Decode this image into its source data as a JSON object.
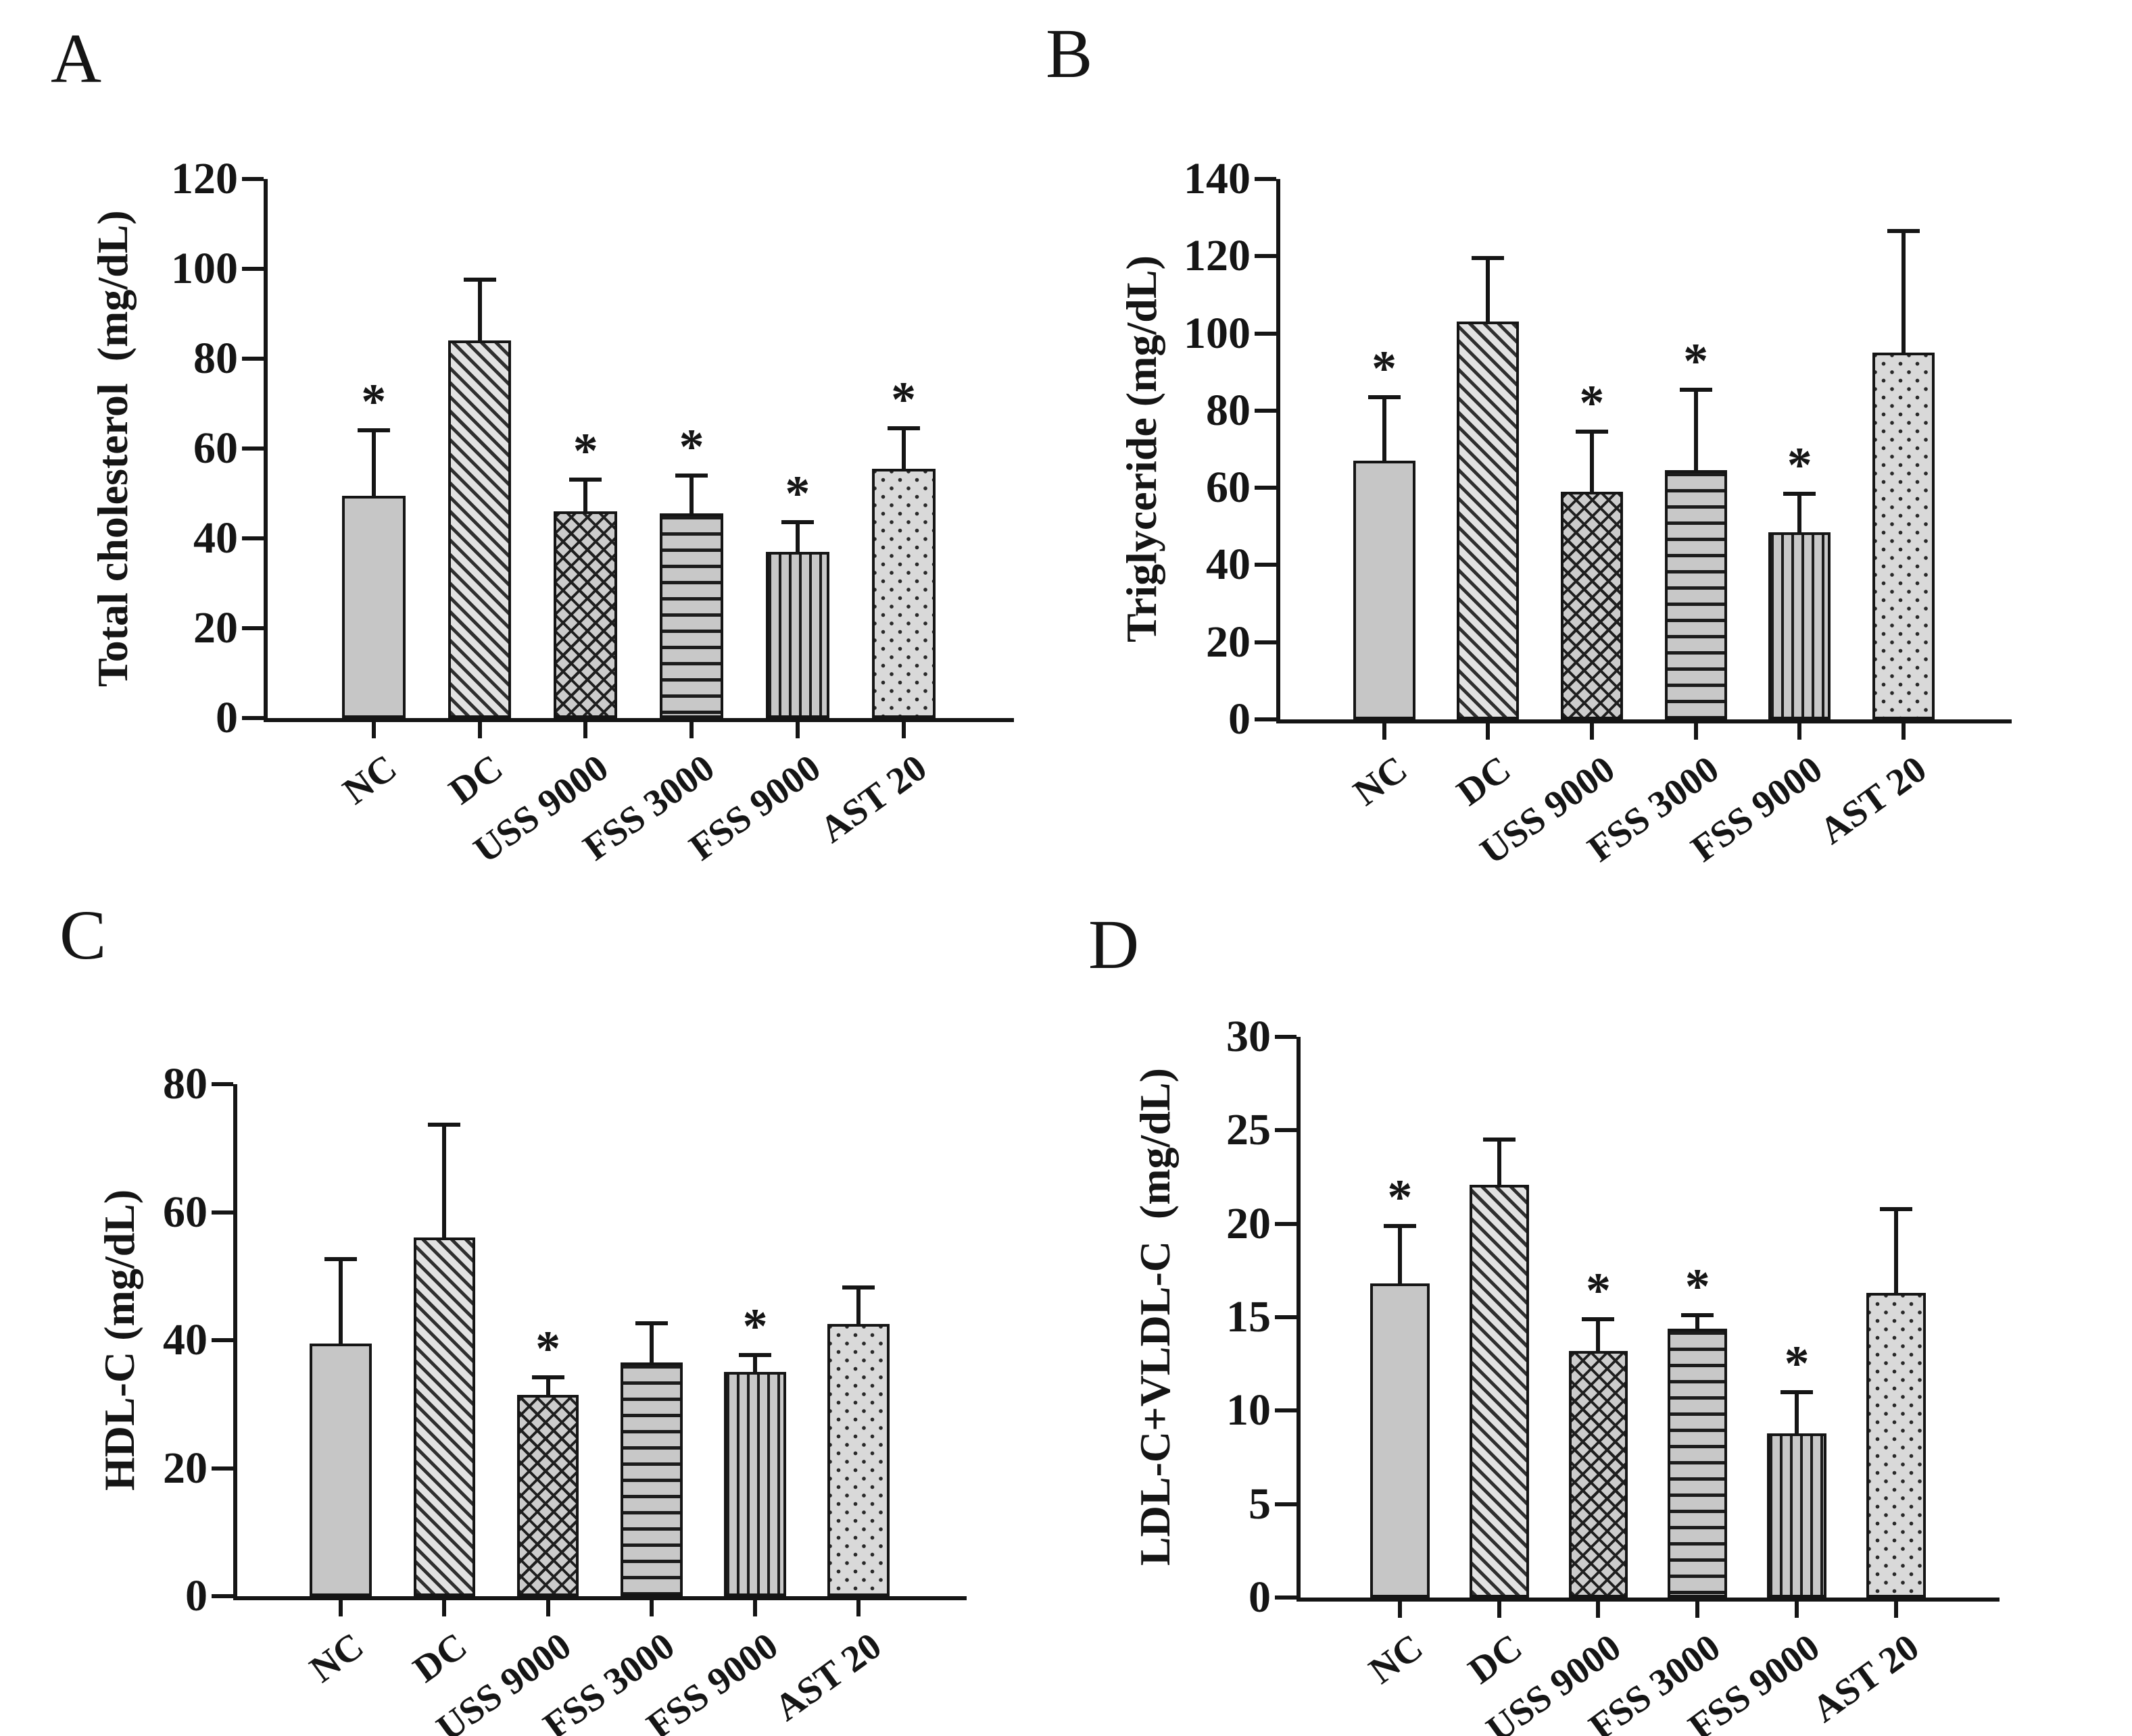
{
  "figure": {
    "significance_marker": "*",
    "categories": [
      "NC",
      "DC",
      "USS 9000",
      "FSS 3000",
      "FSS 9000",
      "AST 20"
    ],
    "bar_patterns": [
      {
        "category": "NC",
        "pattern": "solid-gray"
      },
      {
        "category": "DC",
        "pattern": "diagonal-hatch"
      },
      {
        "category": "USS 9000",
        "pattern": "crosshatch"
      },
      {
        "category": "FSS 3000",
        "pattern": "horizontal-stripes"
      },
      {
        "category": "FSS 9000",
        "pattern": "vertical-stripes"
      },
      {
        "category": "AST 20",
        "pattern": "dots"
      }
    ],
    "colors": {
      "ink": "#1a1a1a",
      "bar_gray": "#c6c6c6",
      "bar_light": "#dfdfdf",
      "background": "#ffffff"
    }
  },
  "chart_data": [
    {
      "panel": "A",
      "type": "bar",
      "title": "",
      "xlabel": "",
      "ylabel": "Total cholesterol  (mg/dL)",
      "ylim": [
        0,
        120
      ],
      "yticks": [
        0,
        20,
        40,
        60,
        80,
        100,
        120
      ],
      "grid": false,
      "legend": false,
      "categories": [
        "NC",
        "DC",
        "USS 9000",
        "FSS 3000",
        "FSS 9000",
        "AST 20"
      ],
      "values": [
        49.5,
        84,
        46,
        45.5,
        37,
        55.5
      ],
      "error_plus": [
        15,
        14,
        7.5,
        9,
        7,
        9.5
      ],
      "significant": [
        true,
        false,
        true,
        true,
        true,
        true
      ]
    },
    {
      "panel": "B",
      "type": "bar",
      "title": "",
      "xlabel": "",
      "ylabel": "Triglyceride (mg/dL)",
      "ylim": [
        0,
        140
      ],
      "yticks": [
        0,
        20,
        40,
        60,
        80,
        100,
        120,
        140
      ],
      "grid": false,
      "legend": false,
      "categories": [
        "NC",
        "DC",
        "USS 9000",
        "FSS 3000",
        "FSS 9000",
        "AST 20"
      ],
      "values": [
        67,
        103,
        59,
        64.5,
        48.5,
        95
      ],
      "error_plus": [
        17,
        17,
        16,
        21.5,
        10.5,
        32
      ],
      "significant": [
        true,
        false,
        true,
        true,
        true,
        false
      ]
    },
    {
      "panel": "C",
      "type": "bar",
      "title": "",
      "xlabel": "",
      "ylabel": "HDL-C (mg/dL)",
      "ylim": [
        0,
        80
      ],
      "yticks": [
        0,
        20,
        40,
        60,
        80
      ],
      "grid": false,
      "legend": false,
      "categories": [
        "NC",
        "DC",
        "USS 9000",
        "FSS 3000",
        "FSS 9000",
        "AST 20"
      ],
      "values": [
        39.5,
        56,
        31.5,
        36.5,
        35,
        42.5
      ],
      "error_plus": [
        13.5,
        18,
        3,
        6.5,
        3,
        6
      ],
      "significant": [
        false,
        false,
        true,
        false,
        true,
        false
      ]
    },
    {
      "panel": "D",
      "type": "bar",
      "title": "",
      "xlabel": "",
      "ylabel": "LDL-C+VLDL-C  (mg/dL)",
      "ylim": [
        0,
        30
      ],
      "yticks": [
        0,
        5,
        10,
        15,
        20,
        25,
        30
      ],
      "grid": false,
      "legend": false,
      "categories": [
        "NC",
        "DC",
        "USS 9000",
        "FSS 3000",
        "FSS 9000",
        "AST 20"
      ],
      "values": [
        16.8,
        22.1,
        13.2,
        14.4,
        8.8,
        16.3
      ],
      "error_plus": [
        3.2,
        2.5,
        1.8,
        0.8,
        2.3,
        4.6
      ],
      "significant": [
        true,
        false,
        true,
        true,
        true,
        false
      ]
    }
  ]
}
